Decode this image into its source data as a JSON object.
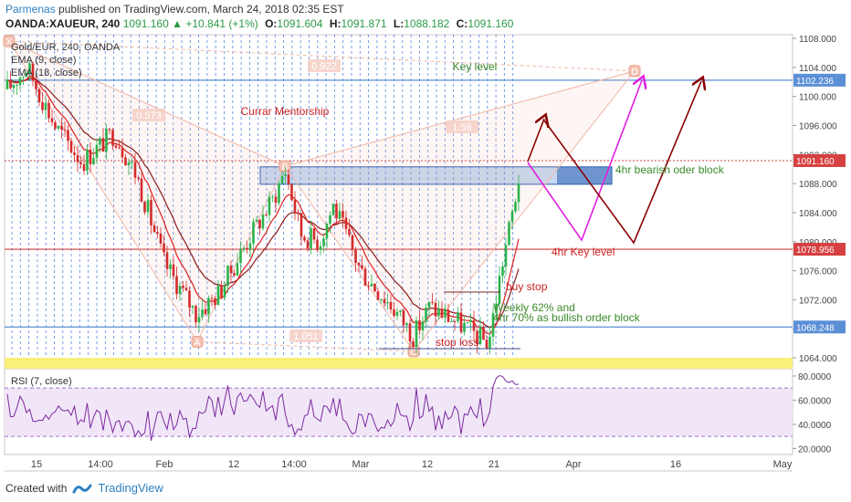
{
  "header": {
    "author": "Parmenas",
    "published_text": "published on TradingView.com, March 24, 2018 02:35 EST"
  },
  "ohlc": {
    "symbol": "OANDA:XAUEUR, 240",
    "last": "1091.160",
    "arrow": "▲",
    "change": "+10.841 (+1%)",
    "o_label": "O:",
    "o": "1091.604",
    "h_label": "H:",
    "h": "1091.871",
    "l_label": "L:",
    "l": "1088.182",
    "c_label": "C:",
    "c": "1091.160"
  },
  "legend": [
    "Gold/EUR, 240, OANDA",
    "EMA (9, close)",
    "EMA (18, close)"
  ],
  "footer": {
    "created_with": "Created with",
    "brand": "TradingView"
  },
  "colors": {
    "up": "#2bb34a",
    "down": "#d52a2a",
    "ema9": "#e02020",
    "ema18": "#8b1a1a",
    "pattern": "#f1b8a8",
    "rsi": "#7b2aa0",
    "rsi_band": "#f1e6f8",
    "grid_dash": "#3a6fd6",
    "level_blue": "#5b8fd6",
    "level_red": "#d64040",
    "magenta": "#e020e0",
    "darkred": "#8b0000",
    "yellow_band": "#f8f07a",
    "green_text": "#3a8a2a",
    "red_text": "#cc2222",
    "pattern_text": "#e08a70"
  },
  "chart_data": {
    "type": "candlestick",
    "price_axis": {
      "ticks": [
        "1108.000",
        "1104.000",
        "1100.000",
        "1096.000",
        "1092.000",
        "1088.000",
        "1084.000",
        "1080.000",
        "1076.000",
        "1072.000",
        "1068.000",
        "1064.000"
      ],
      "ylim": [
        1062.5,
        1108.5
      ]
    },
    "price_labels": [
      {
        "value": 1102.236,
        "text": "1102.236",
        "color": "#5b8fd6"
      },
      {
        "value": 1091.16,
        "text": "1091.160",
        "color": "#d64040"
      },
      {
        "value": 1078.956,
        "text": "1078.956",
        "color": "#d64040"
      },
      {
        "value": 1068.248,
        "text": "1068.248",
        "color": "#5b8fd6"
      }
    ],
    "x_axis": {
      "ticks": [
        "15",
        "14:00",
        "Feb",
        "12",
        "14:00",
        "Mar",
        "12",
        "21",
        "Apr",
        "16",
        "May"
      ]
    },
    "rsi": {
      "label": "RSI (7, close)",
      "ticks": [
        "80.0000",
        "60.0000",
        "40.0000",
        "20.0000"
      ],
      "ylim": [
        15,
        86
      ],
      "band": [
        30,
        70
      ]
    },
    "pattern_points": [
      {
        "label": "X",
        "price": 1107.6
      },
      {
        "label": "A",
        "price": 1066.2
      },
      {
        "label": "B",
        "price": 1090.4
      },
      {
        "label": "C",
        "price": 1064.9
      },
      {
        "label": "D",
        "price": 1103.5
      }
    ],
    "pattern_ratios": [
      "0.922",
      "0.573",
      "1.051",
      "1.56"
    ],
    "annotations": [
      "Key level",
      "Currar Mentorship",
      "4hr bearish oder block",
      "4hr Key level",
      "buy stop",
      "Weekly 62% and",
      "4hr 70% as bullish order block",
      "stop loss"
    ]
  }
}
